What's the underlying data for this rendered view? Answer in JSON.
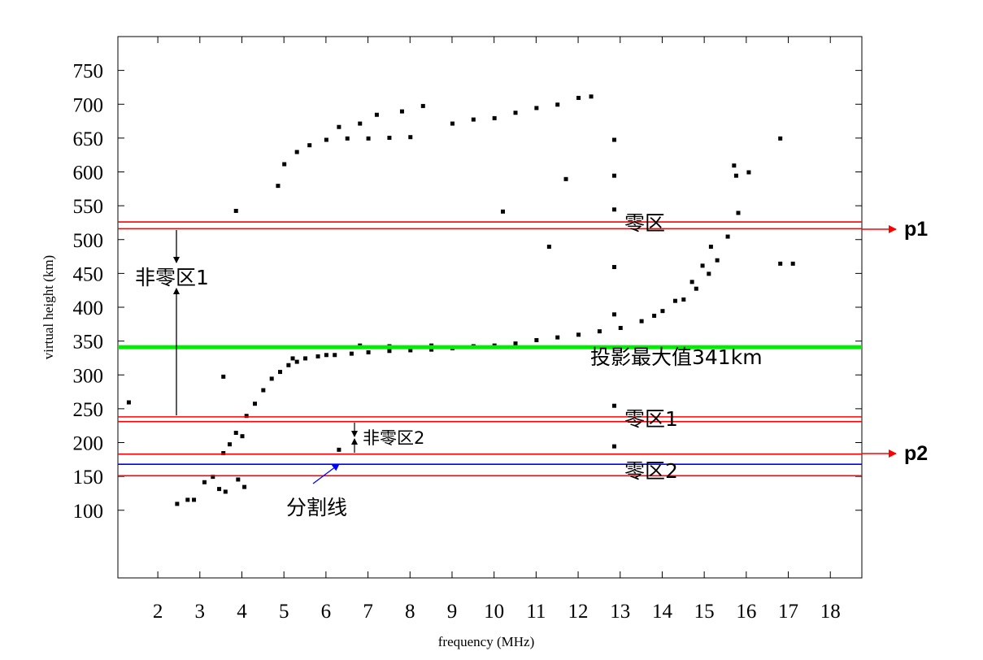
{
  "chart_data": {
    "type": "scatter",
    "title": "",
    "xlabel": "frequency (MHz)",
    "ylabel": "virtual height (km)",
    "xlim": [
      1.05,
      18.75
    ],
    "ylim": [
      0,
      800
    ],
    "x_ticks": [
      2,
      3,
      4,
      5,
      6,
      7,
      8,
      9,
      10,
      11,
      12,
      13,
      14,
      15,
      16,
      17,
      18
    ],
    "y_ticks": [
      100,
      150,
      200,
      250,
      300,
      350,
      400,
      450,
      500,
      550,
      600,
      650,
      700,
      750
    ],
    "grid": false,
    "legend": "none",
    "series": [
      {
        "values": [
          [
            2.45,
            110
          ],
          [
            2.7,
            116
          ],
          [
            2.85,
            116
          ],
          [
            3.1,
            142
          ],
          [
            3.3,
            150
          ],
          [
            3.45,
            132
          ],
          [
            3.6,
            128
          ],
          [
            3.9,
            146
          ],
          [
            4.05,
            135
          ],
          [
            3.55,
            185
          ],
          [
            3.7,
            198
          ],
          [
            3.85,
            215
          ],
          [
            4.0,
            210
          ],
          [
            4.1,
            240
          ],
          [
            4.3,
            258
          ],
          [
            4.5,
            278
          ],
          [
            4.7,
            295
          ],
          [
            4.9,
            305
          ],
          [
            5.1,
            315
          ],
          [
            5.3,
            320
          ],
          [
            5.5,
            325
          ],
          [
            5.8,
            328
          ],
          [
            6.2,
            330
          ],
          [
            6.6,
            332
          ],
          [
            7.0,
            334
          ],
          [
            7.5,
            336
          ],
          [
            8.0,
            337
          ],
          [
            8.5,
            338
          ],
          [
            9.0,
            340
          ],
          [
            9.5,
            342
          ],
          [
            10.0,
            344
          ],
          [
            10.5,
            347
          ],
          [
            11.0,
            352
          ],
          [
            11.5,
            356
          ],
          [
            12.0,
            360
          ],
          [
            12.5,
            365
          ],
          [
            13.0,
            370
          ],
          [
            13.5,
            380
          ],
          [
            14.0,
            395
          ],
          [
            14.5,
            412
          ],
          [
            14.8,
            428
          ],
          [
            15.1,
            450
          ],
          [
            15.3,
            470
          ],
          [
            15.55,
            505
          ],
          [
            15.8,
            540
          ],
          [
            5.2,
            325
          ],
          [
            6.0,
            330
          ],
          [
            6.8,
            344
          ],
          [
            7.5,
            343
          ],
          [
            8.5,
            344
          ],
          [
            9.5,
            343
          ],
          [
            13.8,
            388
          ],
          [
            14.3,
            410
          ],
          [
            14.7,
            438
          ],
          [
            14.95,
            462
          ],
          [
            15.15,
            490
          ],
          [
            4.85,
            580
          ],
          [
            5.0,
            612
          ],
          [
            5.3,
            630
          ],
          [
            5.6,
            640
          ],
          [
            6.0,
            648
          ],
          [
            6.5,
            650
          ],
          [
            7.0,
            650
          ],
          [
            7.5,
            651
          ],
          [
            8.0,
            652
          ],
          [
            6.3,
            667
          ],
          [
            6.8,
            672
          ],
          [
            7.2,
            685
          ],
          [
            7.8,
            690
          ],
          [
            8.3,
            698
          ],
          [
            9.0,
            672
          ],
          [
            9.5,
            678
          ],
          [
            10.0,
            680
          ],
          [
            10.5,
            688
          ],
          [
            11.0,
            695
          ],
          [
            11.5,
            700
          ],
          [
            12.0,
            710
          ],
          [
            12.3,
            712
          ],
          [
            1.3,
            260
          ],
          [
            3.55,
            298
          ],
          [
            3.85,
            543
          ],
          [
            6.3,
            190
          ],
          [
            10.2,
            542
          ],
          [
            11.3,
            490
          ],
          [
            11.7,
            590
          ],
          [
            12.85,
            648
          ],
          [
            12.85,
            595
          ],
          [
            12.85,
            545
          ],
          [
            12.85,
            460
          ],
          [
            12.85,
            390
          ],
          [
            12.85,
            255
          ],
          [
            12.85,
            195
          ],
          [
            15.7,
            610
          ],
          [
            15.75,
            595
          ],
          [
            16.05,
            600
          ],
          [
            16.8,
            650
          ],
          [
            16.8,
            465
          ],
          [
            17.1,
            465
          ]
        ]
      }
    ],
    "lines": {
      "red_hlines": [
        526,
        516,
        238,
        231,
        183,
        151
      ],
      "green_hline": 341,
      "blue_hline": 168
    },
    "annotations": {
      "zero_zone": "零区",
      "nonzero_zone_1": "非零区1",
      "projection_max": "投影最大值341km",
      "zero_zone_1": "零区1",
      "nonzero_zone_2": "非零区2",
      "split_line": "分割线",
      "zero_zone_2": "零区2",
      "p1": "p1",
      "p2": "p2"
    },
    "colors": {
      "red": "#ff0000",
      "green": "#00ee00",
      "blue": "#0000ff",
      "black": "#000000"
    }
  }
}
